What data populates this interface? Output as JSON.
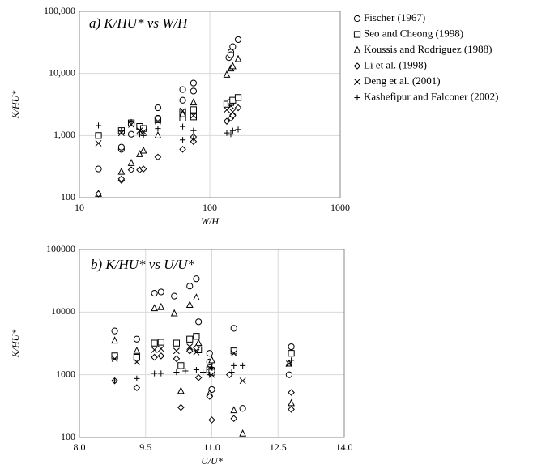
{
  "chart_data": [
    {
      "type": "scatter",
      "title": "a) K/HU* vs W/H",
      "xlabel": "W/H",
      "ylabel": "K/HU*",
      "xlog": true,
      "ylog": true,
      "grid": true,
      "legend": "right",
      "xlim": [
        10,
        1000
      ],
      "ylim": [
        100,
        100000
      ],
      "xticks": [
        10,
        100,
        1000
      ],
      "yticks": [
        100,
        {
          "value": 1000,
          "label": "1,000"
        },
        {
          "value": 10000,
          "label": "10,000"
        },
        {
          "value": 100000,
          "label": "100,000"
        }
      ],
      "series": [
        {
          "name": "Fischer (1967)",
          "marker": "circle",
          "color": "#000000",
          "x": [
            14,
            21,
            21,
            25,
            25,
            30,
            40,
            40,
            62,
            62,
            75,
            75,
            140,
            145,
            150,
            165,
            145
          ],
          "y": [
            290,
            600,
            650,
            1050,
            1600,
            1300,
            2800,
            1900,
            5500,
            3700,
            7000,
            5200,
            18000,
            22000,
            27000,
            35000,
            20000
          ]
        },
        {
          "name": "Seo and Cheong (1998)",
          "marker": "square",
          "color": "#000000",
          "x": [
            14,
            21,
            25,
            29,
            31,
            40,
            62,
            62,
            75,
            75,
            135,
            145,
            150,
            165
          ],
          "y": [
            1000,
            1200,
            1600,
            1400,
            1300,
            1800,
            2400,
            1900,
            2000,
            2600,
            3200,
            3400,
            3700,
            4100
          ]
        },
        {
          "name": "Koussis and Rodriguez (1988)",
          "marker": "triangle",
          "color": "#000000",
          "x": [
            14,
            21,
            25,
            29,
            31,
            40,
            62,
            75,
            135,
            145,
            150,
            165
          ],
          "y": [
            115,
            260,
            360,
            500,
            570,
            1000,
            2200,
            3400,
            9500,
            12000,
            13000,
            17000
          ]
        },
        {
          "name": "Li et al. (1998)",
          "marker": "diamond",
          "color": "#000000",
          "x": [
            14,
            21,
            21,
            25,
            29,
            31,
            40,
            62,
            75,
            75,
            135,
            145,
            150,
            165
          ],
          "y": [
            115,
            190,
            200,
            280,
            280,
            290,
            450,
            600,
            800,
            950,
            1700,
            1900,
            2100,
            2800
          ]
        },
        {
          "name": "Deng et al. (2001)",
          "marker": "x",
          "color": "#000000",
          "x": [
            14,
            21,
            25,
            29,
            31,
            40,
            62,
            75,
            135,
            145,
            150
          ],
          "y": [
            750,
            1100,
            1500,
            1200,
            1150,
            1700,
            2500,
            2100,
            2600,
            3000,
            2400
          ]
        },
        {
          "name": "Kashefipur and Falconer (2002)",
          "marker": "plus",
          "color": "#000000",
          "x": [
            14,
            21,
            25,
            29,
            31,
            40,
            62,
            62,
            75,
            75,
            135,
            145,
            150,
            165
          ],
          "y": [
            1450,
            1200,
            1650,
            1050,
            1000,
            1300,
            1400,
            850,
            1200,
            900,
            1100,
            1050,
            1200,
            1250
          ]
        }
      ]
    },
    {
      "type": "scatter",
      "title": "b) K/HU* vs U/U*",
      "xlabel": "U/U*",
      "ylabel": "K/HU*",
      "xlog": false,
      "ylog": true,
      "grid": true,
      "xlim": [
        8,
        14
      ],
      "ylim": [
        100,
        100000
      ],
      "xticks": [
        {
          "value": 8,
          "label": "8.0"
        },
        9.5,
        {
          "value": 11,
          "label": "11.0"
        },
        12.5,
        {
          "value": 14,
          "label": "14.0"
        }
      ],
      "yticks": [
        100,
        1000,
        10000,
        100000
      ],
      "series": [
        {
          "marker": "circle",
          "color": "#000000",
          "x": [
            8.8,
            9.3,
            9.7,
            9.85,
            10.15,
            10.5,
            10.65,
            10.7,
            10.95,
            10.95,
            11.5,
            11.0,
            11.7,
            12.8,
            12.75,
            11.0
          ],
          "y": [
            5000,
            3700,
            20000,
            21000,
            18000,
            26000,
            34000,
            7000,
            2200,
            1600,
            5500,
            580,
            290,
            2800,
            1000,
            1200
          ]
        },
        {
          "marker": "square",
          "color": "#000000",
          "x": [
            8.8,
            9.3,
            9.7,
            9.85,
            10.2,
            10.5,
            10.65,
            10.7,
            10.95,
            11.0,
            11.5,
            12.8,
            10.3
          ],
          "y": [
            2000,
            1900,
            3200,
            3300,
            3200,
            3700,
            4100,
            2500,
            1200,
            1100,
            2400,
            2200,
            1400
          ]
        },
        {
          "marker": "triangle",
          "color": "#000000",
          "x": [
            8.8,
            9.3,
            9.7,
            9.85,
            10.15,
            10.5,
            10.65,
            10.7,
            10.95,
            11.0,
            11.5,
            11.7,
            12.8,
            12.75,
            10.3
          ],
          "y": [
            3500,
            2400,
            11500,
            12000,
            9500,
            13000,
            17000,
            3200,
            500,
            1700,
            270,
            115,
            350,
            1500,
            550
          ]
        },
        {
          "marker": "diamond",
          "color": "#000000",
          "x": [
            8.8,
            9.3,
            9.7,
            9.85,
            10.2,
            10.3,
            10.5,
            10.65,
            10.95,
            11.0,
            11.5,
            11.4,
            12.8,
            12.8,
            10.7
          ],
          "y": [
            800,
            620,
            1900,
            2000,
            1800,
            300,
            2400,
            2700,
            450,
            190,
            200,
            1000,
            520,
            280,
            900
          ]
        },
        {
          "marker": "x",
          "color": "#000000",
          "x": [
            8.8,
            9.3,
            9.7,
            9.85,
            10.2,
            10.5,
            10.65,
            10.95,
            11.0,
            11.5,
            11.7,
            12.75
          ],
          "y": [
            1800,
            1600,
            2500,
            2600,
            2400,
            2800,
            2300,
            1300,
            1000,
            2200,
            800,
            1500
          ]
        },
        {
          "marker": "plus",
          "color": "#000000",
          "x": [
            8.8,
            9.3,
            9.7,
            9.85,
            10.2,
            10.4,
            10.65,
            10.95,
            11.0,
            11.5,
            11.45,
            11.7,
            12.8,
            10.8
          ],
          "y": [
            800,
            870,
            1050,
            1050,
            1100,
            1150,
            1200,
            1000,
            1300,
            1400,
            1100,
            1400,
            1700,
            1100
          ]
        }
      ]
    }
  ]
}
